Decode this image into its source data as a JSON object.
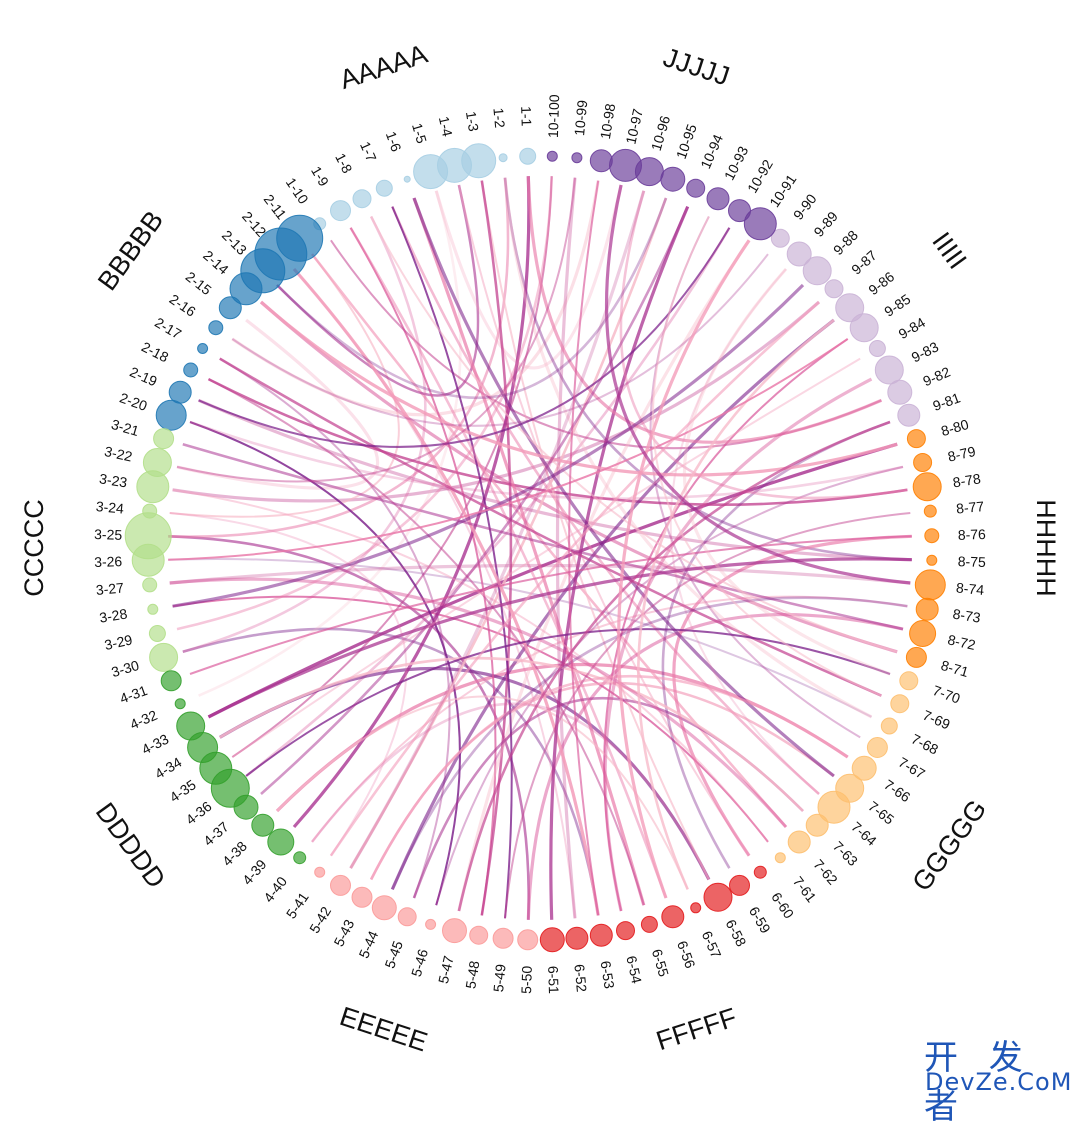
{
  "watermark": {
    "line1": "开 发 者",
    "line2": "DevZe.CoM"
  },
  "chart_data": {
    "type": "chord-bubble",
    "title": "",
    "groups": [
      {
        "name": "AAAAA",
        "prefix": "1",
        "start": 1,
        "end": 10,
        "color": "#a6cee3"
      },
      {
        "name": "BBBBB",
        "prefix": "2",
        "start": 11,
        "end": 20,
        "color": "#1f78b4"
      },
      {
        "name": "CCCCC",
        "prefix": "3",
        "start": 21,
        "end": 30,
        "color": "#b2df8a"
      },
      {
        "name": "DDDDD",
        "prefix": "4",
        "start": 31,
        "end": 40,
        "color": "#33a02c"
      },
      {
        "name": "EEEEE",
        "prefix": "5",
        "start": 41,
        "end": 50,
        "color": "#fb9a99"
      },
      {
        "name": "FFFFF",
        "prefix": "6",
        "start": 51,
        "end": 60,
        "color": "#e31a1c"
      },
      {
        "name": "GGGGG",
        "prefix": "7",
        "start": 61,
        "end": 70,
        "color": "#fdbf6f"
      },
      {
        "name": "HHHHH",
        "prefix": "8",
        "start": 71,
        "end": 80,
        "color": "#ff7f00"
      },
      {
        "name": "IIIII",
        "prefix": "9",
        "start": 81,
        "end": 90,
        "color": "#cab2d6"
      },
      {
        "name": "JJJJJ",
        "prefix": "10",
        "start": 91,
        "end": 100,
        "color": "#6a3d9a"
      }
    ],
    "node_sizes": [
      8,
      4,
      17,
      17,
      17,
      3,
      8,
      9,
      10,
      6,
      23,
      26,
      22,
      16,
      11,
      7,
      5,
      7,
      11,
      15,
      10,
      14,
      16,
      7,
      23,
      16,
      7,
      5,
      8,
      14,
      10,
      5,
      14,
      15,
      16,
      19,
      12,
      11,
      13,
      6,
      5,
      10,
      10,
      12,
      9,
      5,
      12,
      9,
      10,
      10,
      12,
      11,
      11,
      9,
      8,
      11,
      5,
      14,
      10,
      6,
      5,
      11,
      11,
      16,
      14,
      12,
      10,
      8,
      9,
      9,
      10,
      13,
      11,
      15,
      5,
      7,
      6,
      14,
      9,
      9,
      11,
      12,
      14,
      8,
      14,
      14,
      9,
      14,
      12,
      9,
      16,
      11,
      11,
      9,
      12,
      14,
      16,
      11,
      5,
      5
    ],
    "links": [
      [
        26,
        68
      ],
      [
        25,
        50
      ],
      [
        23,
        87
      ],
      [
        28,
        61
      ],
      [
        25,
        2
      ],
      [
        22,
        15
      ],
      [
        24,
        11
      ],
      [
        30,
        53
      ],
      [
        33,
        80
      ],
      [
        35,
        100
      ],
      [
        36,
        92
      ],
      [
        38,
        66
      ],
      [
        40,
        73
      ],
      [
        32,
        5
      ],
      [
        34,
        58
      ],
      [
        17,
        45
      ],
      [
        18,
        78
      ],
      [
        14,
        71
      ],
      [
        12,
        52
      ],
      [
        11,
        62
      ],
      [
        16,
        98
      ],
      [
        20,
        46
      ],
      [
        13,
        4
      ],
      [
        19,
        75
      ],
      [
        9,
        48
      ],
      [
        7,
        64
      ],
      [
        5,
        97
      ],
      [
        3,
        58
      ],
      [
        2,
        75
      ],
      [
        1,
        39
      ],
      [
        10,
        82
      ],
      [
        8,
        30
      ],
      [
        6,
        55
      ],
      [
        4,
        60
      ],
      [
        42,
        95
      ],
      [
        44,
        86
      ],
      [
        46,
        79
      ],
      [
        48,
        3
      ],
      [
        50,
        72
      ],
      [
        41,
        24
      ],
      [
        43,
        65
      ],
      [
        47,
        91
      ],
      [
        49,
        7
      ],
      [
        45,
        63
      ],
      [
        52,
        99
      ],
      [
        54,
        85
      ],
      [
        56,
        9
      ],
      [
        53,
        12
      ],
      [
        57,
        38
      ],
      [
        59,
        81
      ],
      [
        51,
        94
      ],
      [
        55,
        18
      ],
      [
        58,
        40
      ],
      [
        60,
        76
      ],
      [
        61,
        23
      ],
      [
        63,
        34
      ],
      [
        65,
        6
      ],
      [
        67,
        93
      ],
      [
        69,
        17
      ],
      [
        62,
        27
      ],
      [
        64,
        89
      ],
      [
        66,
        43
      ],
      [
        68,
        2
      ],
      [
        70,
        36
      ],
      [
        72,
        21
      ],
      [
        74,
        27
      ],
      [
        76,
        31
      ],
      [
        78,
        96
      ],
      [
        80,
        14
      ],
      [
        71,
        8
      ],
      [
        73,
        44
      ],
      [
        75,
        33
      ],
      [
        77,
        49
      ],
      [
        79,
        20
      ],
      [
        82,
        1
      ],
      [
        84,
        35
      ],
      [
        86,
        57
      ],
      [
        88,
        28
      ],
      [
        90,
        16
      ],
      [
        81,
        47
      ],
      [
        83,
        54
      ],
      [
        85,
        26
      ],
      [
        87,
        41
      ],
      [
        89,
        70
      ],
      [
        92,
        19
      ],
      [
        94,
        37
      ],
      [
        96,
        42
      ],
      [
        98,
        53
      ],
      [
        100,
        29
      ],
      [
        91,
        56
      ],
      [
        93,
        69
      ],
      [
        95,
        13
      ],
      [
        97,
        74
      ],
      [
        99,
        22
      ]
    ]
  }
}
